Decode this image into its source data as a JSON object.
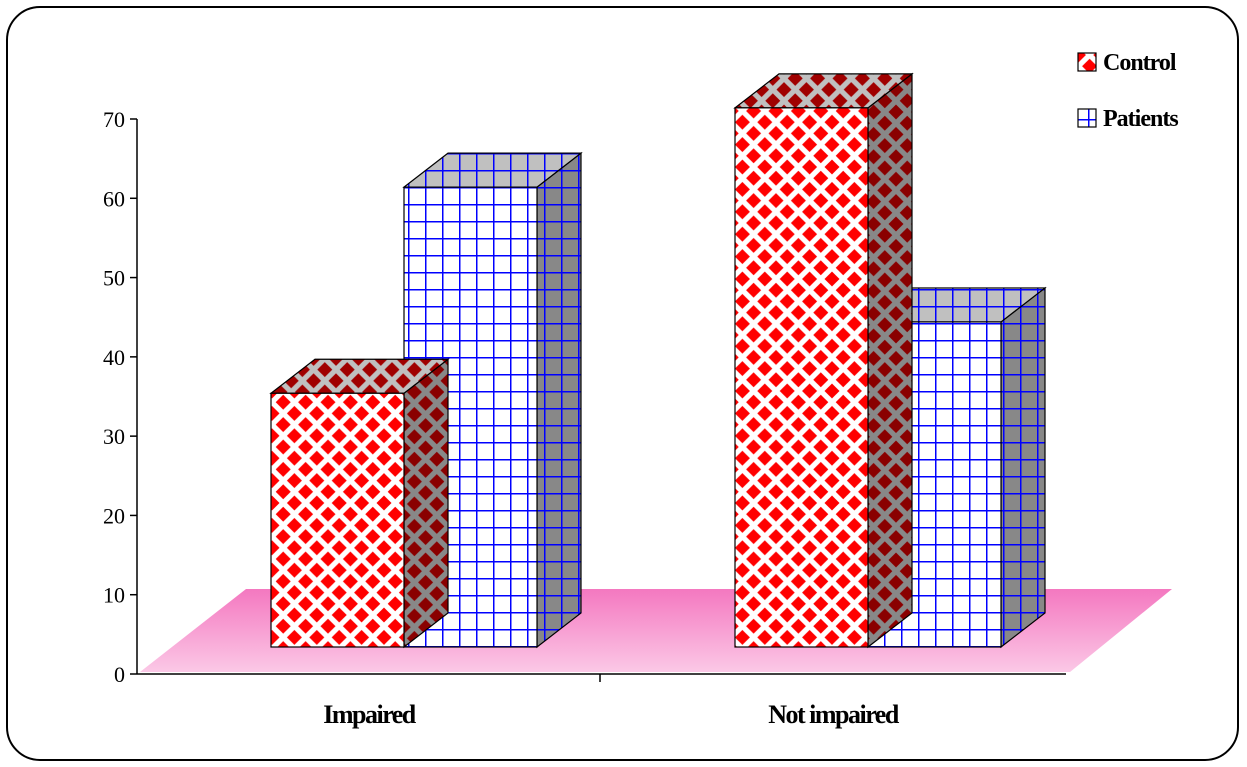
{
  "chart_data": {
    "type": "bar",
    "style": "3d-clustered-column",
    "categories": [
      "Impaired",
      "Not impaired"
    ],
    "series": [
      {
        "name": "Control",
        "values": [
          32,
          68
        ],
        "color": "#ff0000",
        "pattern": "diamond-checker"
      },
      {
        "name": "Patients",
        "values": [
          58,
          41
        ],
        "color": "#0000ff",
        "pattern": "grid"
      }
    ],
    "yticks": [
      0,
      10,
      20,
      30,
      40,
      50,
      60,
      70
    ],
    "ylim": [
      0,
      70
    ],
    "legend": "top-right",
    "floor_color": "#f48cc8",
    "side_color": "#888888"
  }
}
